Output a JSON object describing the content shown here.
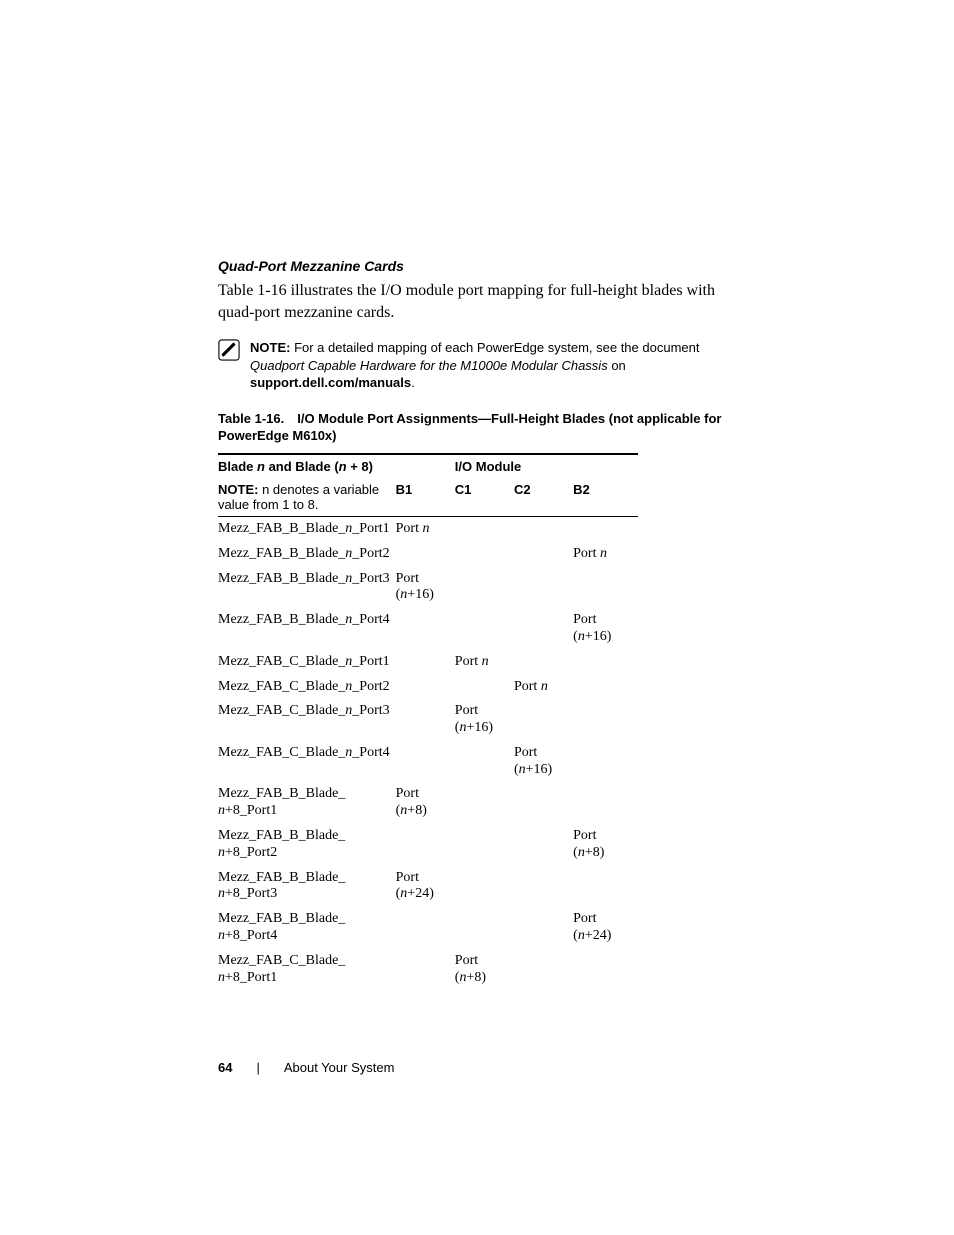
{
  "section_heading": "Quad-Port Mezzanine Cards",
  "intro_paragraph": "Table 1-16 illustrates the I/O module port mapping for full-height blades with quad-port mezzanine cards.",
  "note": {
    "label": "NOTE:",
    "text_before_doc": " For a detailed mapping of each PowerEdge system, see the document ",
    "doc_title": "Quadport Capable Hardware for the M1000e Modular Chassis",
    "text_after_doc": " on ",
    "bold_trail": "support.dell.com/manuals",
    "period": "."
  },
  "table": {
    "caption": "Table 1-16. I/O Module Port Assignments—Full-Height Blades (not applicable for PowerEdge M610x)",
    "head": {
      "left_top_pre": "Blade ",
      "left_top_n1": "n",
      "left_top_mid": " and Blade (",
      "left_top_n2": "n",
      "left_top_post": " + 8)",
      "io_module": "I/O Module",
      "subnote_label": "NOTE:",
      "subnote_text": " n denotes a variable value from 1 to 8.",
      "cols": {
        "b1": "B1",
        "c1": "C1",
        "c2": "C2",
        "b2": "B2"
      }
    },
    "rows": [
      {
        "label_pre": "Mezz_FAB_B_Blade_",
        "label_var": "n",
        "label_post": "_Port1",
        "b1_pre": "Port ",
        "b1_var": "n",
        "b1_post": "",
        "c1_pre": "",
        "c1_var": "",
        "c1_post": "",
        "c2_pre": "",
        "c2_var": "",
        "c2_post": "",
        "b2_pre": "",
        "b2_var": "",
        "b2_post": ""
      },
      {
        "label_pre": "Mezz_FAB_B_Blade_",
        "label_var": "n",
        "label_post": "_Port2",
        "b1_pre": "",
        "b1_var": "",
        "b1_post": "",
        "c1_pre": "",
        "c1_var": "",
        "c1_post": "",
        "c2_pre": "",
        "c2_var": "",
        "c2_post": "",
        "b2_pre": "Port ",
        "b2_var": "n",
        "b2_post": ""
      },
      {
        "label_pre": "Mezz_FAB_B_Blade_",
        "label_var": "n",
        "label_post": "_Port3",
        "b1_pre": "Port (",
        "b1_var": "n",
        "b1_post": "+16)",
        "c1_pre": "",
        "c1_var": "",
        "c1_post": "",
        "c2_pre": "",
        "c2_var": "",
        "c2_post": "",
        "b2_pre": "",
        "b2_var": "",
        "b2_post": ""
      },
      {
        "label_pre": "Mezz_FAB_B_Blade_",
        "label_var": "n",
        "label_post": "_Port4",
        "b1_pre": "",
        "b1_var": "",
        "b1_post": "",
        "c1_pre": "",
        "c1_var": "",
        "c1_post": "",
        "c2_pre": "",
        "c2_var": "",
        "c2_post": "",
        "b2_pre": "Port (",
        "b2_var": "n",
        "b2_post": "+16)"
      },
      {
        "label_pre": "Mezz_FAB_C_Blade_",
        "label_var": "n",
        "label_post": "_Port1",
        "b1_pre": "",
        "b1_var": "",
        "b1_post": "",
        "c1_pre": "Port ",
        "c1_var": "n",
        "c1_post": "",
        "c2_pre": "",
        "c2_var": "",
        "c2_post": "",
        "b2_pre": "",
        "b2_var": "",
        "b2_post": ""
      },
      {
        "label_pre": "Mezz_FAB_C_Blade_",
        "label_var": "n",
        "label_post": "_Port2",
        "b1_pre": "",
        "b1_var": "",
        "b1_post": "",
        "c1_pre": "",
        "c1_var": "",
        "c1_post": "",
        "c2_pre": "Port ",
        "c2_var": "n",
        "c2_post": "",
        "b2_pre": "",
        "b2_var": "",
        "b2_post": ""
      },
      {
        "label_pre": "Mezz_FAB_C_Blade_",
        "label_var": "n",
        "label_post": "_Port3",
        "b1_pre": "",
        "b1_var": "",
        "b1_post": "",
        "c1_pre": "Port (",
        "c1_var": "n",
        "c1_post": "+16)",
        "c2_pre": "",
        "c2_var": "",
        "c2_post": "",
        "b2_pre": "",
        "b2_var": "",
        "b2_post": ""
      },
      {
        "label_pre": "Mezz_FAB_C_Blade_",
        "label_var": "n",
        "label_post": "_Port4",
        "b1_pre": "",
        "b1_var": "",
        "b1_post": "",
        "c1_pre": "",
        "c1_var": "",
        "c1_post": "",
        "c2_pre": "Port (",
        "c2_var": "n",
        "c2_post": "+16)",
        "b2_pre": "",
        "b2_var": "",
        "b2_post": ""
      },
      {
        "label_pre": "Mezz_FAB_B_Blade_",
        "label_var": "n",
        "label_post": "+8_Port1",
        "b1_pre": "Port (",
        "b1_var": "n",
        "b1_post": "+8)",
        "c1_pre": "",
        "c1_var": "",
        "c1_post": "",
        "c2_pre": "",
        "c2_var": "",
        "c2_post": "",
        "b2_pre": "",
        "b2_var": "",
        "b2_post": ""
      },
      {
        "label_pre": "Mezz_FAB_B_Blade_",
        "label_var": "n",
        "label_post": "+8_Port2",
        "b1_pre": "",
        "b1_var": "",
        "b1_post": "",
        "c1_pre": "",
        "c1_var": "",
        "c1_post": "",
        "c2_pre": "",
        "c2_var": "",
        "c2_post": "",
        "b2_pre": "Port (",
        "b2_var": "n",
        "b2_post": "+8)"
      },
      {
        "label_pre": "Mezz_FAB_B_Blade_",
        "label_var": "n",
        "label_post": "+8_Port3",
        "b1_pre": "Port (",
        "b1_var": "n",
        "b1_post": "+24)",
        "c1_pre": "",
        "c1_var": "",
        "c1_post": "",
        "c2_pre": "",
        "c2_var": "",
        "c2_post": "",
        "b2_pre": "",
        "b2_var": "",
        "b2_post": ""
      },
      {
        "label_pre": "Mezz_FAB_B_Blade_",
        "label_var": "n",
        "label_post": "+8_Port4",
        "b1_pre": "",
        "b1_var": "",
        "b1_post": "",
        "c1_pre": "",
        "c1_var": "",
        "c1_post": "",
        "c2_pre": "",
        "c2_var": "",
        "c2_post": "",
        "b2_pre": "Port (",
        "b2_var": "n",
        "b2_post": "+24)"
      },
      {
        "label_pre": "Mezz_FAB_C_Blade_",
        "label_var": "n",
        "label_post": "+8_Port1",
        "b1_pre": "",
        "b1_var": "",
        "b1_post": "",
        "c1_pre": "Port (",
        "c1_var": "n",
        "c1_post": "+8)",
        "c2_pre": "",
        "c2_var": "",
        "c2_post": "",
        "b2_pre": "",
        "b2_var": "",
        "b2_post": ""
      }
    ]
  },
  "footer": {
    "page_number": "64",
    "separator": "|",
    "section_title": "About Your System"
  }
}
